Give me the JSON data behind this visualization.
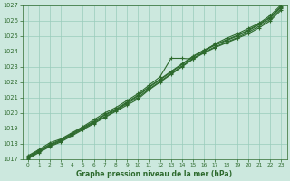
{
  "title": "Graphe pression niveau de la mer (hPa)",
  "x_values": [
    0,
    1,
    2,
    3,
    4,
    5,
    6,
    7,
    8,
    9,
    10,
    11,
    12,
    13,
    14,
    15,
    16,
    17,
    18,
    19,
    20,
    21,
    22,
    23
  ],
  "series": [
    [
      1017.1,
      1017.5,
      1017.9,
      1018.2,
      1018.6,
      1019.0,
      1019.4,
      1019.85,
      1020.2,
      1020.65,
      1021.1,
      1021.65,
      1022.15,
      1022.65,
      1023.15,
      1023.65,
      1024.05,
      1024.4,
      1024.7,
      1025.0,
      1025.35,
      1025.75,
      1026.2,
      1026.9
    ],
    [
      1017.0,
      1017.4,
      1017.8,
      1018.1,
      1018.5,
      1018.9,
      1019.3,
      1019.7,
      1020.1,
      1020.5,
      1020.9,
      1021.5,
      1022.0,
      1022.5,
      1023.0,
      1023.5,
      1023.9,
      1024.25,
      1024.55,
      1024.85,
      1025.15,
      1025.55,
      1026.0,
      1026.7
    ],
    [
      1017.05,
      1017.45,
      1017.85,
      1018.15,
      1018.55,
      1018.95,
      1019.35,
      1019.75,
      1020.15,
      1020.6,
      1021.0,
      1021.55,
      1022.05,
      1022.55,
      1023.05,
      1023.55,
      1023.95,
      1024.3,
      1024.6,
      1024.9,
      1025.25,
      1025.65,
      1026.1,
      1026.8
    ],
    [
      1017.15,
      1017.55,
      1017.95,
      1018.25,
      1018.65,
      1019.05,
      1019.45,
      1019.9,
      1020.25,
      1020.7,
      1021.15,
      1021.7,
      1022.2,
      1022.7,
      1023.2,
      1023.7,
      1024.1,
      1024.45,
      1024.75,
      1025.05,
      1025.4,
      1025.8,
      1026.25,
      1026.95
    ],
    [
      1017.2,
      1017.6,
      1018.05,
      1018.3,
      1018.7,
      1019.1,
      1019.55,
      1020.0,
      1020.35,
      1020.8,
      1021.25,
      1021.8,
      1022.35,
      1023.55,
      1023.55,
      1023.5,
      1024.0,
      1024.5,
      1024.85,
      1025.15,
      1025.5,
      1025.85,
      1026.35,
      1027.05
    ]
  ],
  "line_color": "#2d6a2d",
  "marker_color": "#2d6a2d",
  "bg_color": "#cce8de",
  "grid_color": "#99ccbb",
  "axis_color": "#2d6a2d",
  "ylim": [
    1017,
    1027
  ],
  "xlim": [
    0,
    23
  ],
  "yticks": [
    1017,
    1018,
    1019,
    1020,
    1021,
    1022,
    1023,
    1024,
    1025,
    1026,
    1027
  ],
  "xticks": [
    0,
    1,
    2,
    3,
    4,
    5,
    6,
    7,
    8,
    9,
    10,
    11,
    12,
    13,
    14,
    15,
    16,
    17,
    18,
    19,
    20,
    21,
    22,
    23
  ]
}
